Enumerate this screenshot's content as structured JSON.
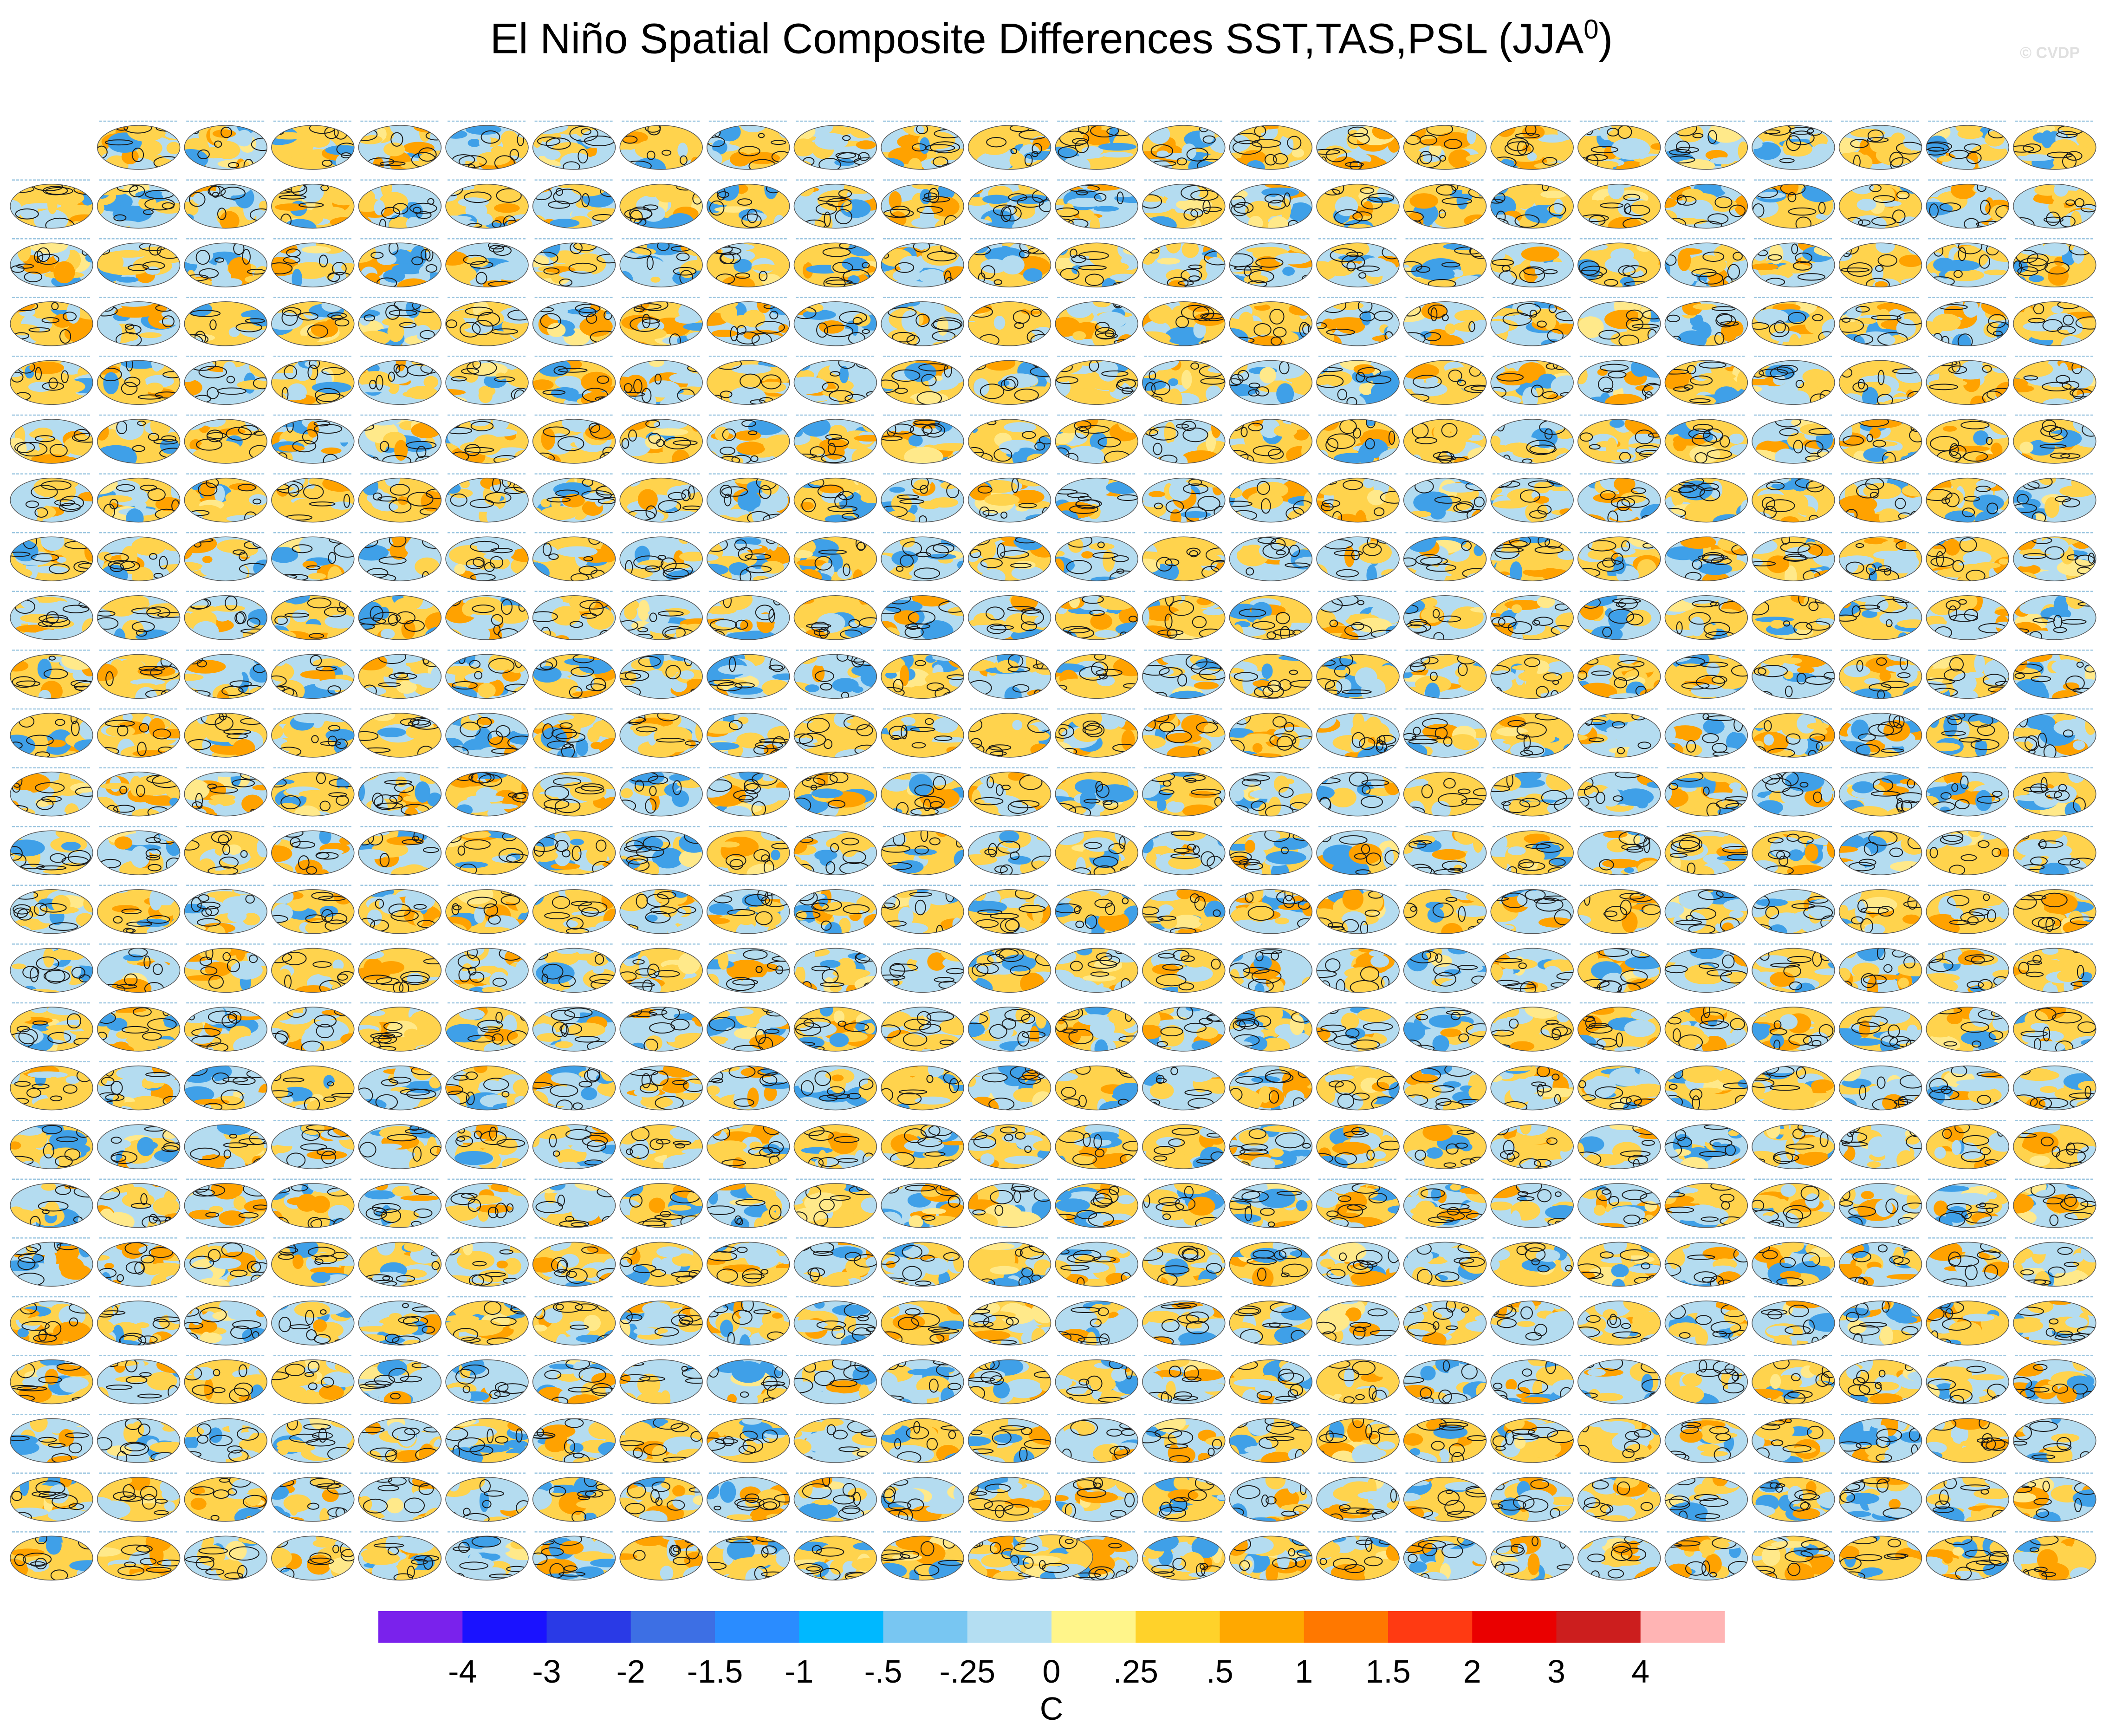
{
  "title_main": "El Niño Spatial Composite Differences SST,TAS,PSL (JJA",
  "title_sup": "0",
  "title_end": ")",
  "credit": "© CVDP",
  "colors": {
    "land_warm": "#ffd34d",
    "land_hot": "#ffa200",
    "ocean_cool": "#b4dcf0",
    "ocean_cold": "#3fa0e8",
    "contour": "#1a1a1a",
    "background": "#ffffff"
  },
  "chart_data": {
    "type": "heatmap",
    "panel_grid": {
      "columns": 24,
      "rows": 25,
      "first_row_panels": 23,
      "extra_panels_below": 1
    },
    "colorbar": {
      "colors": [
        "#7a22ec",
        "#1a12ff",
        "#2a3ae6",
        "#3d6fe4",
        "#2a8cff",
        "#00b8ff",
        "#78c6f2",
        "#b4def2",
        "#fff58a",
        "#ffd22a",
        "#ffa800",
        "#ff7800",
        "#ff3a12",
        "#ea0000",
        "#cc1e1e",
        "#ffb4b4"
      ],
      "tick_labels": [
        "-4",
        "-3",
        "-2",
        "-1.5",
        "-1",
        "-.5",
        "-.25",
        "0",
        ".25",
        ".5",
        "1",
        "1.5",
        "2",
        "3",
        "4"
      ],
      "units": "C"
    }
  }
}
